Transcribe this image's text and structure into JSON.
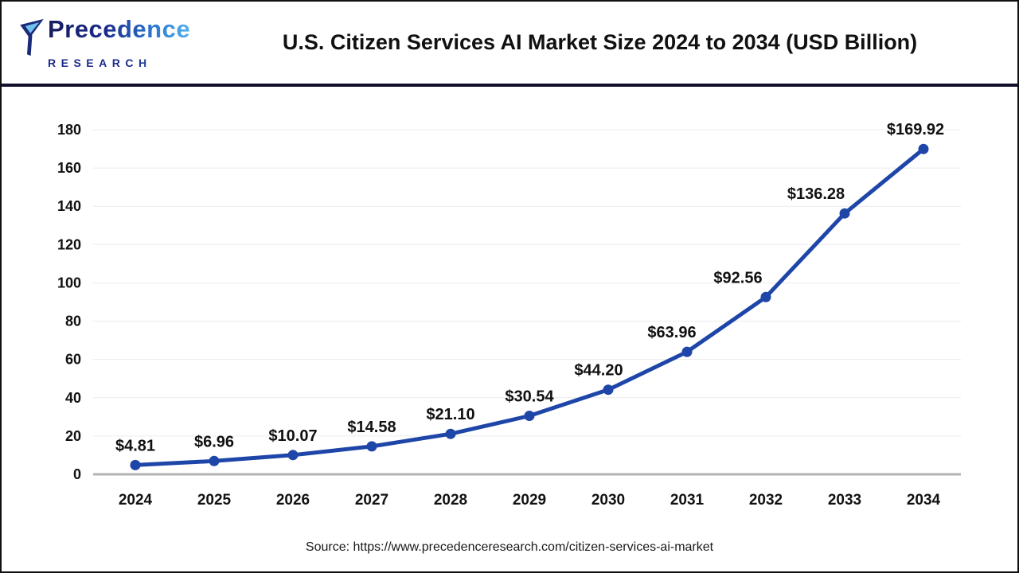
{
  "header": {
    "logo": {
      "brand": "Precedence",
      "sub_brand": "RESEARCH"
    },
    "title": "U.S. Citizen Services AI Market Size 2024 to 2034 (USD Billion)"
  },
  "chart_data": {
    "type": "line",
    "title": "U.S. Citizen Services AI Market Size 2024 to 2034 (USD Billion)",
    "categories": [
      "2024",
      "2025",
      "2026",
      "2027",
      "2028",
      "2029",
      "2030",
      "2031",
      "2032",
      "2033",
      "2034"
    ],
    "values": [
      4.81,
      6.96,
      10.07,
      14.58,
      21.1,
      30.54,
      44.2,
      63.96,
      92.56,
      136.28,
      169.92
    ],
    "data_labels": [
      "$4.81",
      "$6.96",
      "$10.07",
      "$14.58",
      "$21.10",
      "$30.54",
      "$44.20",
      "$63.96",
      "$92.56",
      "$136.28",
      "$169.92"
    ],
    "xlabel": "",
    "ylabel": "",
    "ylim": [
      0,
      180
    ],
    "ytick_step": 20,
    "grid": true,
    "legend": "none",
    "line_color": "#1e46a8",
    "point_color": "#1e46a8",
    "grid_color": "#ececec",
    "axis_color": "#b3b3b3",
    "tick_label_color": "#111111"
  },
  "footer": {
    "source": "Source: https://www.precedenceresearch.com/citizen-services-ai-market"
  },
  "colors": {
    "divider": "#10102d",
    "title": "#111111",
    "background": "#ffffff",
    "logo_dark": "#1b2a78",
    "logo_light": "#53b2ef"
  }
}
